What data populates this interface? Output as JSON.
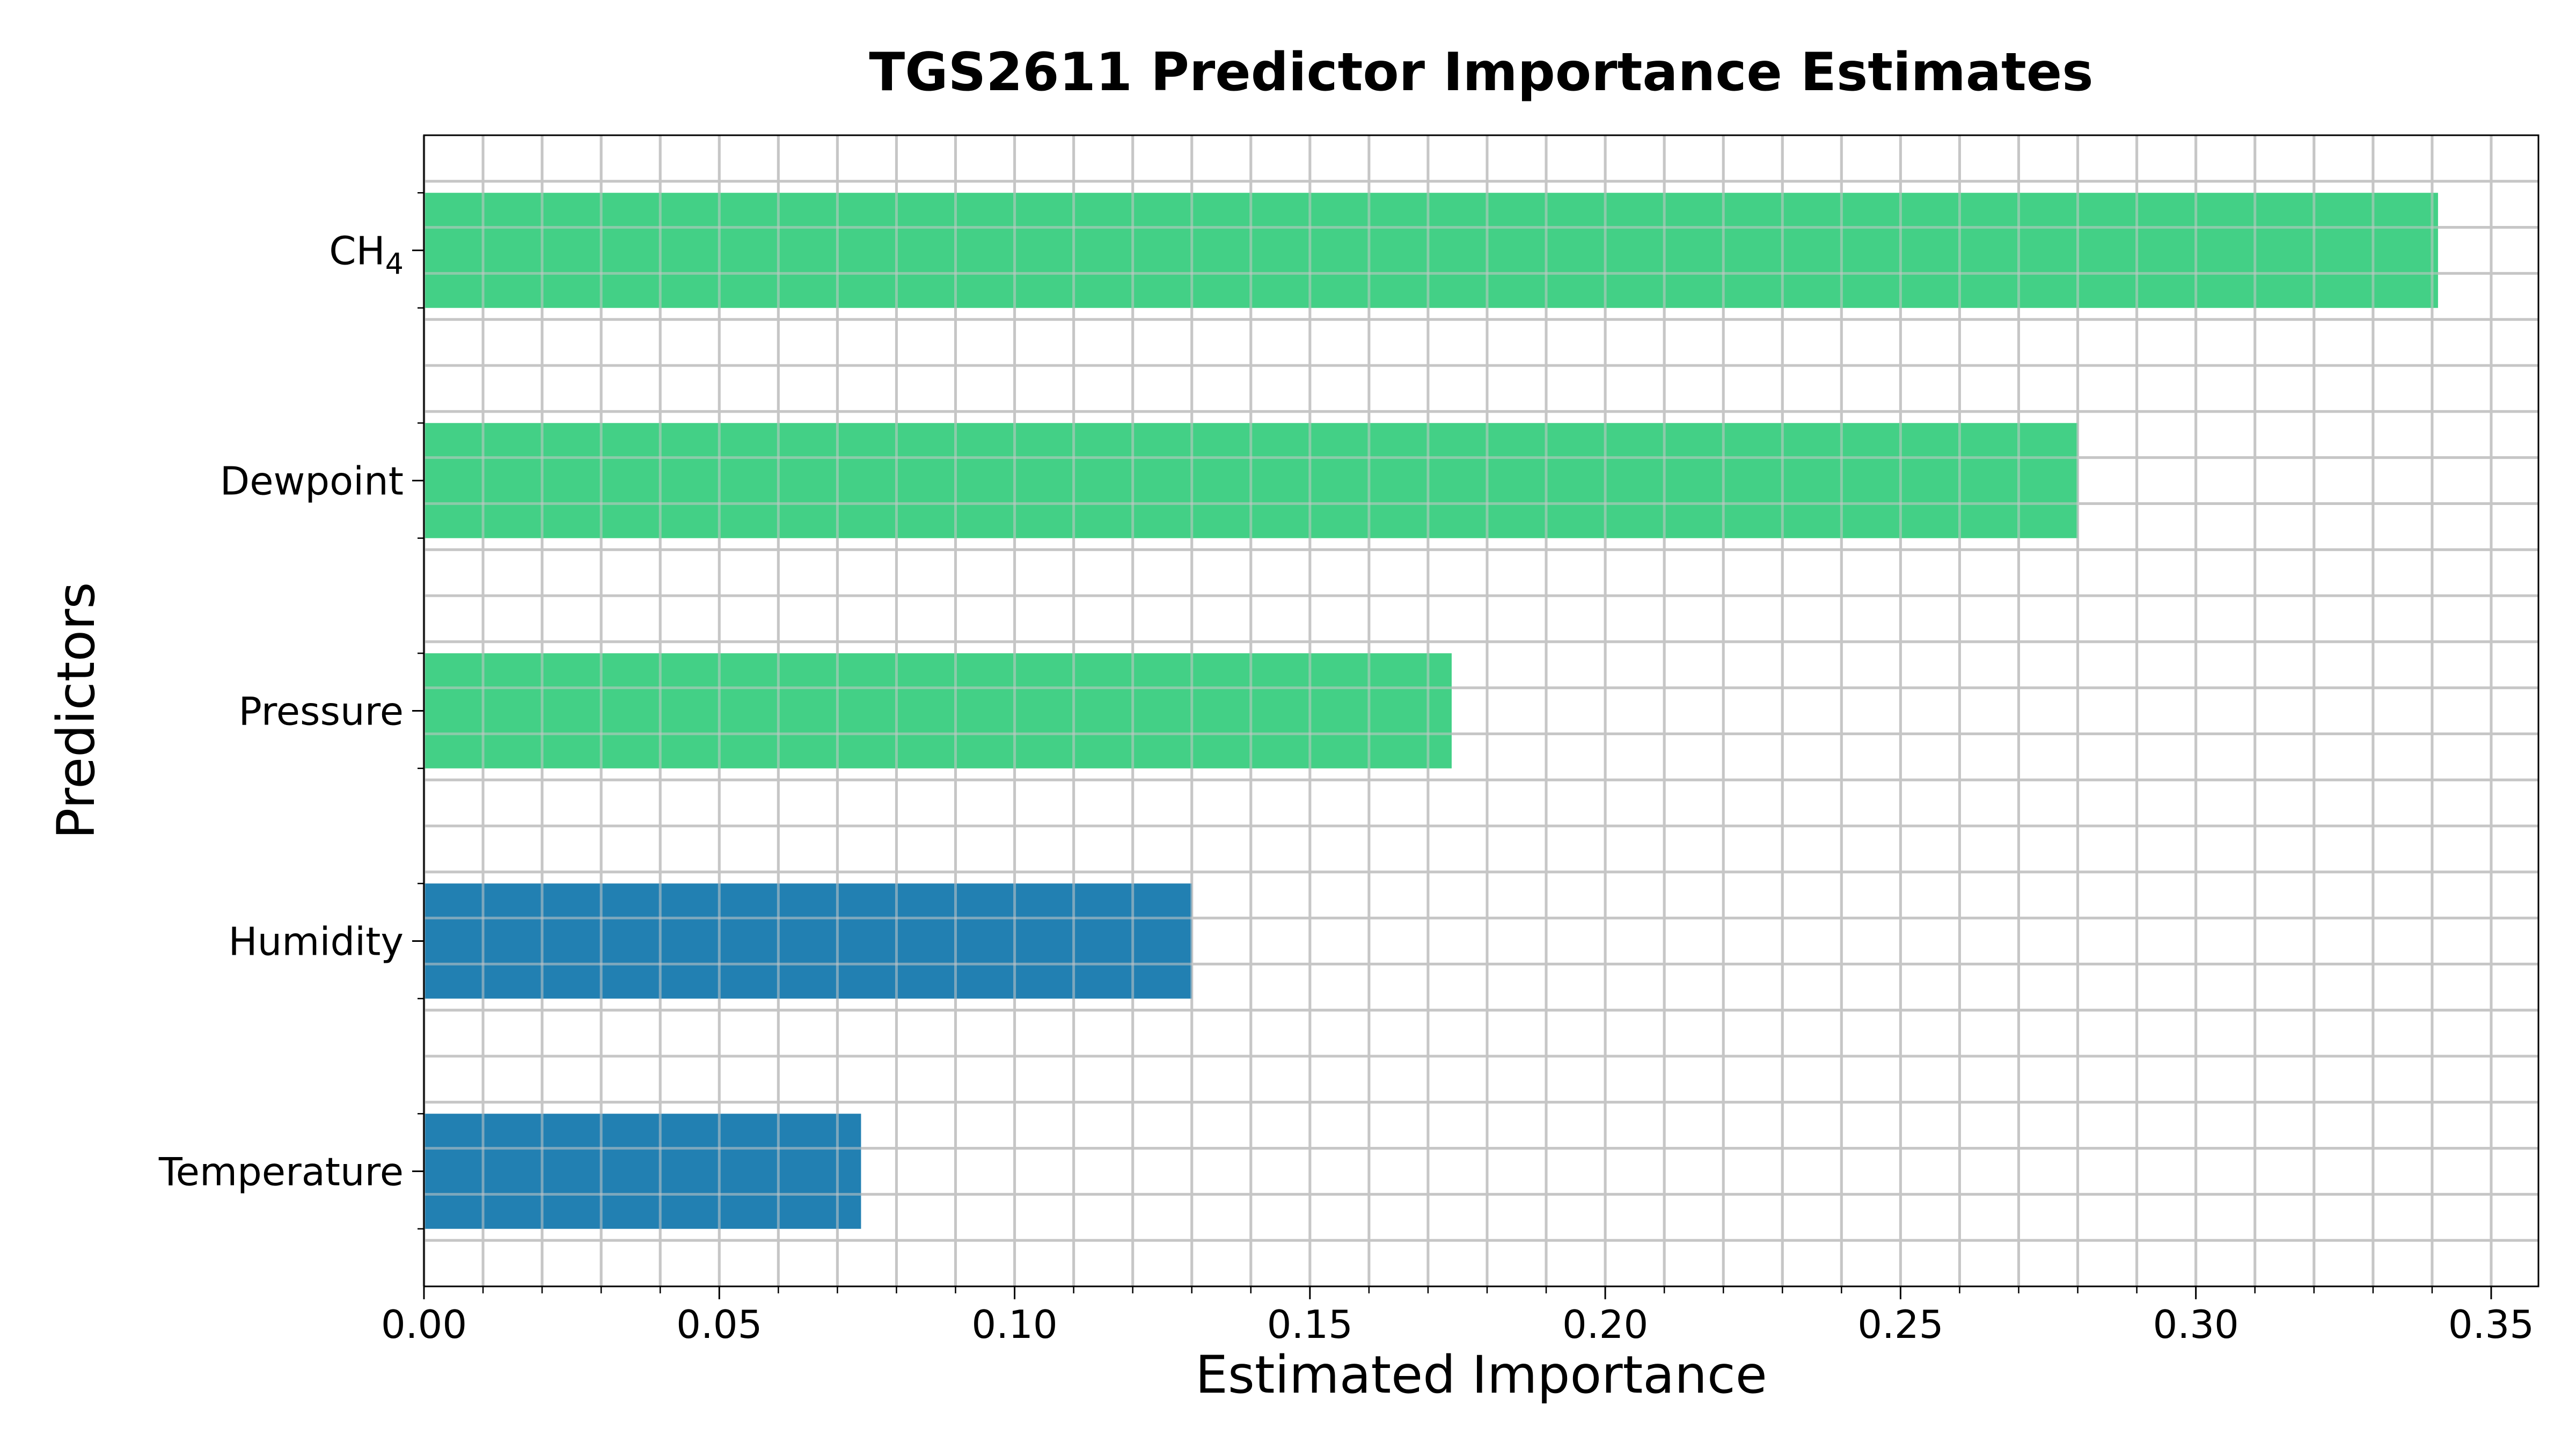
{
  "chart_data": {
    "type": "bar",
    "orientation": "horizontal",
    "title": "TGS2611 Predictor Importance Estimates",
    "xlabel": "Estimated Importance",
    "ylabel": "Predictors",
    "categories": [
      "CH₄",
      "Dewpoint",
      "Pressure",
      "Humidity",
      "Temperature"
    ],
    "values": [
      0.341,
      0.28,
      0.174,
      0.13,
      0.074
    ],
    "bar_colors": [
      "#43d086",
      "#43d086",
      "#43d086",
      "#2280b2",
      "#2280b2"
    ],
    "xlim": [
      0.0,
      0.358
    ],
    "xticks": [
      0.0,
      0.05,
      0.1,
      0.15,
      0.2,
      0.25,
      0.3,
      0.35
    ],
    "xtick_labels": [
      "0.00",
      "0.05",
      "0.10",
      "0.15",
      "0.20",
      "0.25",
      "0.30",
      "0.35"
    ],
    "x_minor_step": 0.01,
    "grid": true,
    "grid_color": "#c6c6c6"
  }
}
